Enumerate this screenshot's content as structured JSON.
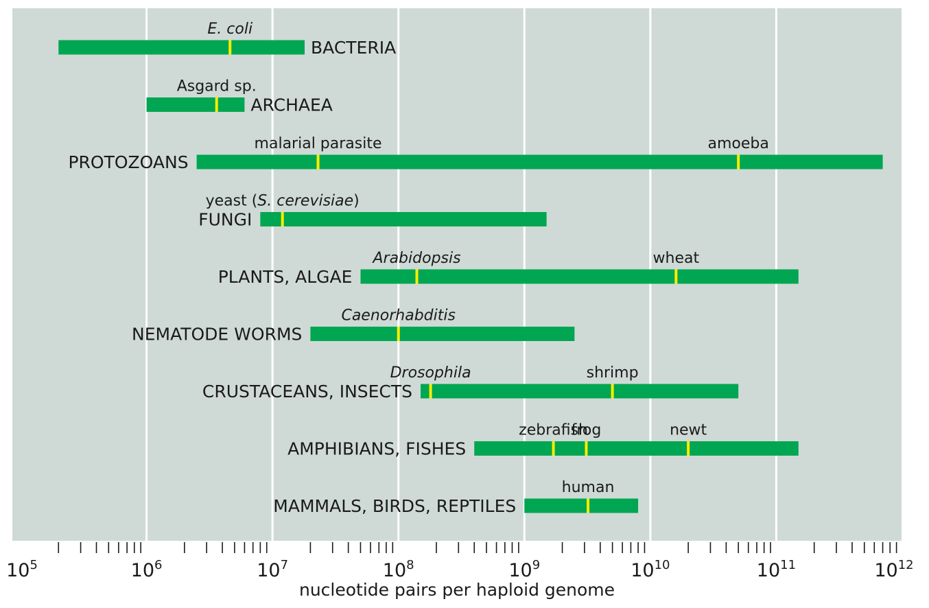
{
  "chart_data": {
    "type": "range",
    "xlabel": "nucleotide pairs per haploid genome",
    "x_scale": "log10",
    "xlim": [
      100000,
      1000000000000
    ],
    "tick_labels": [
      {
        "base": "10",
        "exp": "5"
      },
      {
        "base": "10",
        "exp": "6"
      },
      {
        "base": "10",
        "exp": "7"
      },
      {
        "base": "10",
        "exp": "8"
      },
      {
        "base": "10",
        "exp": "9"
      },
      {
        "base": "10",
        "exp": "10"
      },
      {
        "base": "10",
        "exp": "11"
      },
      {
        "base": "10",
        "exp": "12"
      }
    ],
    "grid": "vertical at decades",
    "colors": {
      "background": "#cfdad6",
      "bar": "#00a651",
      "marker": "#ffed00",
      "grid": "#ffffff"
    },
    "groups": [
      {
        "label": "BACTERIA",
        "label_side": "right",
        "min": 200000,
        "max": 18000000,
        "species": [
          {
            "name": "E. coli",
            "italic": true,
            "value": 4600000
          }
        ]
      },
      {
        "label": "ARCHAEA",
        "label_side": "right",
        "min": 1000000,
        "max": 6000000,
        "species": [
          {
            "name": "Asgard sp.",
            "italic": false,
            "value": 3600000
          }
        ]
      },
      {
        "label": "PROTOZOANS",
        "label_side": "left",
        "min": 2500000,
        "max": 700000000000,
        "species": [
          {
            "name": "malarial parasite",
            "italic": false,
            "value": 23000000
          },
          {
            "name": "amoeba",
            "italic": false,
            "value": 50000000000
          }
        ]
      },
      {
        "label": "FUNGI",
        "label_side": "left",
        "min": 8000000,
        "max": 1500000000,
        "species": [
          {
            "name_parts": [
              {
                "text": "yeast (",
                "italic": false
              },
              {
                "text": "S. cerevisiae",
                "italic": true
              },
              {
                "text": ")",
                "italic": false
              }
            ],
            "value": 12000000
          }
        ]
      },
      {
        "label": "PLANTS, ALGAE",
        "label_side": "left",
        "min": 50000000,
        "max": 150000000000,
        "species": [
          {
            "name": "Arabidopsis",
            "italic": true,
            "value": 140000000
          },
          {
            "name": "wheat",
            "italic": false,
            "value": 16000000000
          }
        ]
      },
      {
        "label": "NEMATODE WORMS",
        "label_side": "left",
        "min": 20000000,
        "max": 2500000000,
        "species": [
          {
            "name": "Caenorhabditis",
            "italic": true,
            "value": 100000000
          }
        ]
      },
      {
        "label": "CRUSTACEANS, INSECTS",
        "label_side": "left",
        "min": 150000000,
        "max": 50000000000,
        "species": [
          {
            "name": "Drosophila",
            "italic": true,
            "value": 180000000
          },
          {
            "name": "shrimp",
            "italic": false,
            "value": 5000000000
          }
        ]
      },
      {
        "label": "AMPHIBIANS, FISHES",
        "label_side": "left",
        "min": 400000000,
        "max": 150000000000,
        "species": [
          {
            "name": "zebrafish",
            "italic": false,
            "value": 1700000000
          },
          {
            "name": "frog",
            "italic": false,
            "value": 3100000000
          },
          {
            "name": "newt",
            "italic": false,
            "value": 20000000000
          }
        ]
      },
      {
        "label": "MAMMALS, BIRDS, REPTILES",
        "label_side": "left",
        "min": 1000000000,
        "max": 8000000000,
        "species": [
          {
            "name": "human",
            "italic": false,
            "value": 3200000000
          }
        ]
      }
    ]
  }
}
